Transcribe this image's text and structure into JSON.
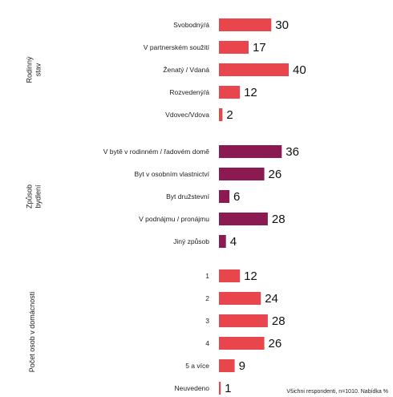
{
  "chart_data": {
    "type": "bar",
    "orientation": "horizontal",
    "xlim": [
      0,
      40
    ],
    "grid": false,
    "groups": [
      {
        "label_lines": [
          "Rodinný",
          "stav"
        ],
        "color": "#e8464c",
        "categories": [
          "Svobodný/á",
          "V partnerském soužití",
          "Ženatý / Vdaná",
          "Rozvedený/á",
          "Vdovec/Vdova"
        ],
        "values": [
          30,
          17,
          40,
          12,
          2
        ]
      },
      {
        "label_lines": [
          "Způsob",
          "bydlení"
        ],
        "color": "#8b1a52",
        "categories": [
          "V bytě v rodinném / řadovém domě",
          "Byt v osobním vlastnictví",
          "Byt družstevní",
          "V podnájmu / pronájmu",
          "Jiný způsob"
        ],
        "values": [
          36,
          26,
          6,
          28,
          4
        ]
      },
      {
        "label_lines": [
          "Počet osob v domácnosti"
        ],
        "color": "#e8464c",
        "categories": [
          "1",
          "2",
          "3",
          "4",
          "5 a více",
          "Neuvedeno"
        ],
        "values": [
          12,
          24,
          28,
          26,
          9,
          1
        ]
      }
    ],
    "footnote": "Všichni respondenti, n=1010. Nabídka %"
  }
}
